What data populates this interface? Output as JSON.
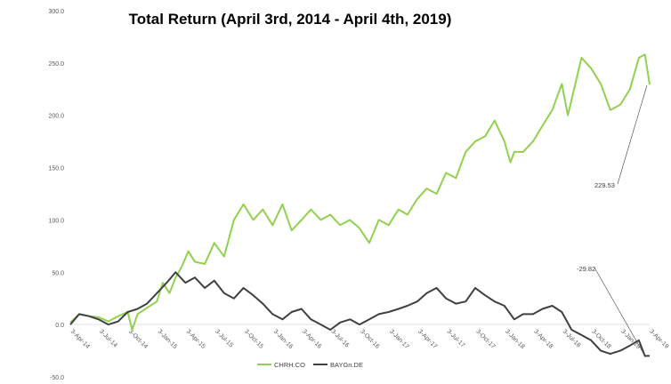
{
  "chart_data": {
    "type": "line",
    "title": "Total Return (April 3rd, 2014 - April 4th, 2019)",
    "xlabel": "",
    "ylabel": "",
    "ylim": [
      -50,
      300
    ],
    "y_ticks": [
      "-50.0",
      "0.0",
      "50.0",
      "100.0",
      "150.0",
      "200.0",
      "250.0",
      "300.0"
    ],
    "x_range": [
      "2014-04-03",
      "2019-04-04"
    ],
    "x_ticks": [
      {
        "date": "2014-04-03",
        "label": "3-Apr-14"
      },
      {
        "date": "2014-07-03",
        "label": "3-Jul-14"
      },
      {
        "date": "2014-10-03",
        "label": "3-Oct-14"
      },
      {
        "date": "2015-01-03",
        "label": "3-Jan-15"
      },
      {
        "date": "2015-04-03",
        "label": "3-Apr-15"
      },
      {
        "date": "2015-07-03",
        "label": "3-Jul-15"
      },
      {
        "date": "2015-10-03",
        "label": "3-Oct-15"
      },
      {
        "date": "2016-01-03",
        "label": "3-Jan-16"
      },
      {
        "date": "2016-04-03",
        "label": "3-Apr-16"
      },
      {
        "date": "2016-07-03",
        "label": "3-Jul-16"
      },
      {
        "date": "2016-10-03",
        "label": "3-Oct-16"
      },
      {
        "date": "2017-01-03",
        "label": "3-Jan-17"
      },
      {
        "date": "2017-04-03",
        "label": "3-Apr-17"
      },
      {
        "date": "2017-07-03",
        "label": "3-Jul-17"
      },
      {
        "date": "2017-10-03",
        "label": "3-Oct-17"
      },
      {
        "date": "2018-01-03",
        "label": "3-Jan-18"
      },
      {
        "date": "2018-04-03",
        "label": "3-Apr-18"
      },
      {
        "date": "2018-07-03",
        "label": "3-Jul-18"
      },
      {
        "date": "2018-10-03",
        "label": "3-Oct-18"
      },
      {
        "date": "2019-01-03",
        "label": "3-Jan-19"
      },
      {
        "date": "2019-04-03",
        "label": "3-Apr-19"
      }
    ],
    "grid": false,
    "legend_position": "bottom-center",
    "series": [
      {
        "name": "CHRH.CO",
        "color": "#92D050",
        "points": [
          [
            "2014-04-03",
            2
          ],
          [
            "2014-05-01",
            10
          ],
          [
            "2014-06-01",
            8
          ],
          [
            "2014-07-01",
            7
          ],
          [
            "2014-08-01",
            3
          ],
          [
            "2014-09-01",
            8
          ],
          [
            "2014-10-01",
            12
          ],
          [
            "2014-10-15",
            -5
          ],
          [
            "2014-11-01",
            10
          ],
          [
            "2014-12-01",
            16
          ],
          [
            "2015-01-01",
            22
          ],
          [
            "2015-01-20",
            40
          ],
          [
            "2015-02-10",
            30
          ],
          [
            "2015-03-01",
            45
          ],
          [
            "2015-03-20",
            55
          ],
          [
            "2015-04-10",
            70
          ],
          [
            "2015-05-01",
            60
          ],
          [
            "2015-06-01",
            58
          ],
          [
            "2015-07-01",
            78
          ],
          [
            "2015-08-01",
            65
          ],
          [
            "2015-09-01",
            100
          ],
          [
            "2015-10-01",
            115
          ],
          [
            "2015-11-01",
            100
          ],
          [
            "2015-12-01",
            110
          ],
          [
            "2016-01-01",
            95
          ],
          [
            "2016-02-01",
            115
          ],
          [
            "2016-03-01",
            90
          ],
          [
            "2016-04-01",
            100
          ],
          [
            "2016-05-01",
            110
          ],
          [
            "2016-06-01",
            100
          ],
          [
            "2016-07-01",
            105
          ],
          [
            "2016-08-01",
            95
          ],
          [
            "2016-09-01",
            100
          ],
          [
            "2016-10-01",
            92
          ],
          [
            "2016-11-01",
            78
          ],
          [
            "2016-12-01",
            100
          ],
          [
            "2017-01-01",
            95
          ],
          [
            "2017-02-01",
            110
          ],
          [
            "2017-03-01",
            105
          ],
          [
            "2017-04-01",
            120
          ],
          [
            "2017-05-01",
            130
          ],
          [
            "2017-06-01",
            125
          ],
          [
            "2017-07-01",
            145
          ],
          [
            "2017-08-01",
            140
          ],
          [
            "2017-09-01",
            165
          ],
          [
            "2017-10-01",
            175
          ],
          [
            "2017-11-01",
            180
          ],
          [
            "2017-12-01",
            195
          ],
          [
            "2018-01-01",
            175
          ],
          [
            "2018-01-20",
            155
          ],
          [
            "2018-02-01",
            165
          ],
          [
            "2018-03-01",
            165
          ],
          [
            "2018-04-01",
            175
          ],
          [
            "2018-05-01",
            190
          ],
          [
            "2018-06-01",
            205
          ],
          [
            "2018-07-01",
            230
          ],
          [
            "2018-07-20",
            200
          ],
          [
            "2018-08-01",
            215
          ],
          [
            "2018-09-01",
            255
          ],
          [
            "2018-10-01",
            245
          ],
          [
            "2018-11-01",
            230
          ],
          [
            "2018-12-01",
            205
          ],
          [
            "2019-01-01",
            210
          ],
          [
            "2019-02-01",
            225
          ],
          [
            "2019-03-01",
            255
          ],
          [
            "2019-03-20",
            258
          ],
          [
            "2019-04-04",
            229.53
          ]
        ]
      },
      {
        "name": "BAYGn.DE",
        "color": "#404040",
        "points": [
          [
            "2014-04-03",
            0
          ],
          [
            "2014-05-01",
            10
          ],
          [
            "2014-06-01",
            8
          ],
          [
            "2014-07-01",
            5
          ],
          [
            "2014-08-01",
            0
          ],
          [
            "2014-09-01",
            3
          ],
          [
            "2014-10-01",
            12
          ],
          [
            "2014-11-01",
            15
          ],
          [
            "2014-12-01",
            20
          ],
          [
            "2015-01-01",
            30
          ],
          [
            "2015-02-01",
            40
          ],
          [
            "2015-03-01",
            50
          ],
          [
            "2015-04-01",
            40
          ],
          [
            "2015-05-01",
            45
          ],
          [
            "2015-06-01",
            35
          ],
          [
            "2015-07-01",
            42
          ],
          [
            "2015-08-01",
            30
          ],
          [
            "2015-09-01",
            25
          ],
          [
            "2015-10-01",
            35
          ],
          [
            "2015-11-01",
            28
          ],
          [
            "2015-12-01",
            20
          ],
          [
            "2016-01-01",
            10
          ],
          [
            "2016-02-01",
            5
          ],
          [
            "2016-03-01",
            12
          ],
          [
            "2016-04-01",
            15
          ],
          [
            "2016-05-01",
            5
          ],
          [
            "2016-06-01",
            0
          ],
          [
            "2016-07-01",
            -5
          ],
          [
            "2016-08-01",
            2
          ],
          [
            "2016-09-01",
            5
          ],
          [
            "2016-10-01",
            0
          ],
          [
            "2016-11-01",
            5
          ],
          [
            "2016-12-01",
            10
          ],
          [
            "2017-01-01",
            12
          ],
          [
            "2017-02-01",
            15
          ],
          [
            "2017-03-01",
            18
          ],
          [
            "2017-04-01",
            22
          ],
          [
            "2017-05-01",
            30
          ],
          [
            "2017-06-01",
            35
          ],
          [
            "2017-07-01",
            25
          ],
          [
            "2017-08-01",
            20
          ],
          [
            "2017-09-01",
            22
          ],
          [
            "2017-10-01",
            35
          ],
          [
            "2017-11-01",
            28
          ],
          [
            "2017-12-01",
            22
          ],
          [
            "2018-01-01",
            18
          ],
          [
            "2018-02-01",
            5
          ],
          [
            "2018-03-01",
            10
          ],
          [
            "2018-04-01",
            10
          ],
          [
            "2018-05-01",
            15
          ],
          [
            "2018-06-01",
            18
          ],
          [
            "2018-07-01",
            12
          ],
          [
            "2018-08-01",
            -5
          ],
          [
            "2018-09-01",
            -10
          ],
          [
            "2018-10-01",
            -15
          ],
          [
            "2018-11-01",
            -25
          ],
          [
            "2018-12-01",
            -28
          ],
          [
            "2019-01-01",
            -25
          ],
          [
            "2019-02-01",
            -20
          ],
          [
            "2019-03-01",
            -15
          ],
          [
            "2019-03-20",
            -30
          ],
          [
            "2019-04-04",
            -29.82
          ]
        ]
      }
    ],
    "annotations": [
      {
        "text": "229.53",
        "series": "CHRH.CO"
      },
      {
        "text": "-29.82",
        "series": "BAYGn.DE"
      }
    ]
  }
}
